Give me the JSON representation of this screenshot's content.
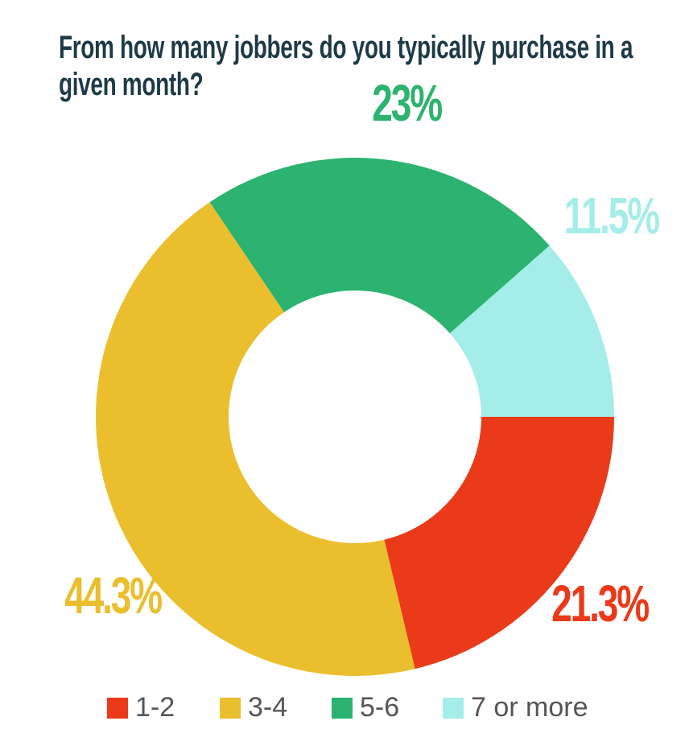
{
  "chart_data": {
    "type": "donut",
    "title": "From how many jobbers do you typically purchase in a given month?",
    "categories": [
      "1-2",
      "3-4",
      "5-6",
      "7 or more"
    ],
    "values": [
      21.3,
      44.3,
      23,
      11.5
    ],
    "value_labels": [
      "21.3%",
      "44.3%",
      "23%",
      "11.5%"
    ],
    "colors": [
      "#ea3a19",
      "#ebbe2e",
      "#2bb36f",
      "#a4ede8"
    ],
    "legend": "bottom"
  }
}
